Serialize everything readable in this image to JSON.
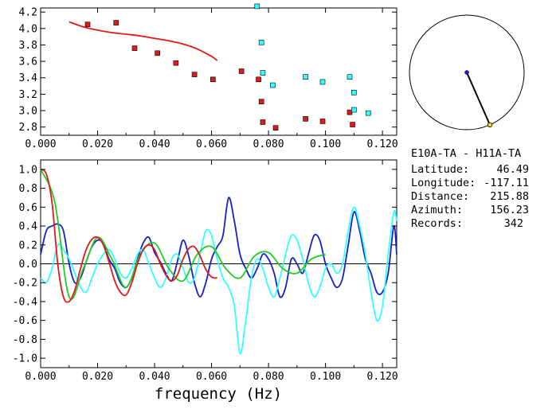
{
  "info": {
    "pair": "E10A-TA  -  H11A-TA",
    "latitude_label": "Latitude:",
    "latitude_value": "46.49",
    "longitude_label": "Longitude:",
    "longitude_value": "-117.11",
    "distance_label": "Distance:",
    "distance_value": "215.88",
    "azimuth_label": "Azimuth:",
    "azimuth_value": "156.23",
    "records_label": "Records:",
    "records_value": "342"
  },
  "azimuth_deg": 156.23,
  "colors": {
    "red": "#e0191a",
    "cyan": "#33ffff",
    "blue": "#1420c8",
    "green": "#22cc22"
  },
  "chart_data": [
    {
      "type": "scatter",
      "xlim": [
        0,
        0.125
      ],
      "ylim": [
        2.7,
        4.25
      ],
      "x_ticks": [
        "0.000",
        "0.020",
        "0.040",
        "0.060",
        "0.080",
        "0.100",
        "0.120"
      ],
      "y_ticks": [
        "2.8",
        "3.0",
        "3.2",
        "3.4",
        "3.6",
        "3.8",
        "4.0",
        "4.2"
      ],
      "series": [
        {
          "type": "line",
          "color": "red",
          "x": [
            0.01,
            0.015,
            0.02,
            0.025,
            0.03,
            0.035,
            0.04,
            0.045,
            0.05,
            0.055,
            0.06,
            0.062
          ],
          "y": [
            4.08,
            4.02,
            3.98,
            3.95,
            3.93,
            3.91,
            3.88,
            3.85,
            3.81,
            3.75,
            3.66,
            3.61
          ]
        },
        {
          "type": "points",
          "color": "red",
          "x": [
            0.0165,
            0.0265,
            0.033,
            0.041,
            0.0475,
            0.054,
            0.0605,
            0.0705,
            0.0765,
            0.0775,
            0.078,
            0.0825,
            0.093,
            0.099,
            0.1085,
            0.1095
          ],
          "y": [
            4.05,
            4.07,
            3.76,
            3.7,
            3.58,
            3.44,
            3.38,
            3.48,
            3.38,
            3.11,
            2.86,
            2.79,
            2.9,
            2.87,
            2.98,
            2.83
          ]
        },
        {
          "type": "points",
          "color": "cyan",
          "x": [
            0.076,
            0.0775,
            0.078,
            0.0815,
            0.093,
            0.099,
            0.1085,
            0.11,
            0.11,
            0.115
          ],
          "y": [
            4.27,
            3.83,
            3.46,
            3.31,
            3.41,
            3.35,
            3.41,
            3.22,
            3.01,
            2.97
          ]
        }
      ]
    },
    {
      "type": "line",
      "xlabel": "frequency (Hz)",
      "xlim": [
        0,
        0.125
      ],
      "ylim": [
        -1.1,
        1.1
      ],
      "x_ticks": [
        "0.000",
        "0.020",
        "0.040",
        "0.060",
        "0.080",
        "0.100",
        "0.120"
      ],
      "y_ticks": [
        "1.0",
        "0.8",
        "0.6",
        "0.4",
        "0.2",
        "0.0",
        "-0.2",
        "-0.4",
        "-0.6",
        "-0.8",
        "-1.0"
      ],
      "series": [
        {
          "color": "blue",
          "x": [
            0.0,
            0.002,
            0.004,
            0.006,
            0.008,
            0.01,
            0.012,
            0.014,
            0.016,
            0.018,
            0.02,
            0.022,
            0.024,
            0.026,
            0.028,
            0.03,
            0.032,
            0.034,
            0.036,
            0.038,
            0.04,
            0.042,
            0.044,
            0.046,
            0.048,
            0.05,
            0.052,
            0.054,
            0.056,
            0.058,
            0.06,
            0.062,
            0.064,
            0.066,
            0.068,
            0.07,
            0.072,
            0.074,
            0.076,
            0.078,
            0.08,
            0.082,
            0.084,
            0.086,
            0.088,
            0.09,
            0.092,
            0.094,
            0.096,
            0.098,
            0.1,
            0.102,
            0.104,
            0.106,
            0.108,
            0.11,
            0.112,
            0.114,
            0.116,
            0.118,
            0.12,
            0.122,
            0.124,
            0.125
          ],
          "y": [
            0.1,
            0.35,
            0.4,
            0.42,
            0.35,
            0.0,
            -0.2,
            -0.15,
            0.02,
            0.18,
            0.25,
            0.22,
            0.05,
            -0.05,
            -0.2,
            -0.25,
            -0.15,
            0.05,
            0.22,
            0.28,
            0.12,
            0.02,
            -0.1,
            -0.18,
            0.02,
            0.25,
            0.08,
            -0.2,
            -0.35,
            -0.2,
            0.05,
            0.18,
            0.3,
            0.7,
            0.45,
            0.1,
            -0.05,
            -0.15,
            -0.05,
            0.1,
            0.05,
            -0.1,
            -0.35,
            -0.25,
            0.05,
            0.0,
            -0.1,
            0.1,
            0.3,
            0.25,
            0.0,
            -0.15,
            -0.25,
            -0.15,
            0.2,
            0.55,
            0.35,
            0.05,
            -0.1,
            -0.3,
            -0.3,
            -0.1,
            0.4,
            0.1
          ]
        },
        {
          "color": "cyan",
          "x": [
            0.0,
            0.002,
            0.004,
            0.006,
            0.008,
            0.01,
            0.012,
            0.014,
            0.016,
            0.018,
            0.02,
            0.022,
            0.024,
            0.026,
            0.028,
            0.03,
            0.032,
            0.034,
            0.036,
            0.038,
            0.04,
            0.042,
            0.044,
            0.046,
            0.048,
            0.05,
            0.052,
            0.054,
            0.056,
            0.058,
            0.06,
            0.062,
            0.064,
            0.066,
            0.068,
            0.07,
            0.072,
            0.074,
            0.076,
            0.078,
            0.08,
            0.082,
            0.084,
            0.086,
            0.088,
            0.09,
            0.092,
            0.094,
            0.096,
            0.098,
            0.1,
            0.102,
            0.104,
            0.106,
            0.108,
            0.11,
            0.112,
            0.114,
            0.116,
            0.118,
            0.12,
            0.122,
            0.124,
            0.125
          ],
          "y": [
            -0.15,
            -0.2,
            -0.05,
            0.2,
            0.15,
            0.05,
            -0.1,
            -0.25,
            -0.3,
            -0.15,
            0.0,
            0.1,
            0.15,
            0.05,
            -0.1,
            -0.15,
            -0.05,
            0.1,
            0.15,
            0.0,
            -0.15,
            -0.25,
            -0.15,
            0.05,
            0.1,
            -0.05,
            -0.2,
            -0.15,
            0.1,
            0.35,
            0.3,
            0.05,
            -0.15,
            -0.25,
            -0.45,
            -0.95,
            -0.6,
            -0.15,
            0.05,
            -0.05,
            -0.25,
            -0.35,
            -0.15,
            0.1,
            0.3,
            0.25,
            0.05,
            -0.2,
            -0.35,
            -0.25,
            -0.05,
            0.0,
            -0.1,
            0.0,
            0.35,
            0.6,
            0.4,
            0.1,
            -0.3,
            -0.6,
            -0.45,
            0.1,
            0.55,
            0.45
          ]
        },
        {
          "color": "green",
          "x": [
            0.0,
            0.005,
            0.01,
            0.015,
            0.02,
            0.025,
            0.03,
            0.035,
            0.04,
            0.045,
            0.05,
            0.055,
            0.06,
            0.065,
            0.07,
            0.075,
            0.08,
            0.085,
            0.09,
            0.095,
            0.1
          ],
          "y": [
            1.0,
            0.65,
            -0.35,
            -0.05,
            0.28,
            0.05,
            -0.25,
            0.1,
            0.22,
            -0.05,
            -0.18,
            0.1,
            0.18,
            -0.05,
            -0.15,
            0.08,
            0.12,
            -0.05,
            -0.1,
            0.05,
            0.1
          ]
        },
        {
          "color": "red",
          "x": [
            0.0,
            0.002,
            0.004,
            0.006,
            0.008,
            0.01,
            0.012,
            0.014,
            0.016,
            0.018,
            0.02,
            0.022,
            0.024,
            0.026,
            0.028,
            0.03,
            0.032,
            0.034,
            0.036,
            0.038,
            0.04,
            0.042,
            0.044,
            0.046,
            0.048,
            0.05,
            0.052,
            0.054,
            0.056,
            0.058,
            0.06,
            0.062
          ],
          "y": [
            1.0,
            0.95,
            0.65,
            0.0,
            -0.35,
            -0.4,
            -0.28,
            -0.05,
            0.15,
            0.26,
            0.28,
            0.2,
            0.02,
            -0.18,
            -0.3,
            -0.33,
            -0.2,
            0.0,
            0.15,
            0.2,
            0.15,
            0.0,
            -0.12,
            -0.18,
            -0.12,
            0.05,
            0.16,
            0.18,
            0.08,
            -0.06,
            -0.14,
            -0.15
          ]
        }
      ]
    }
  ]
}
